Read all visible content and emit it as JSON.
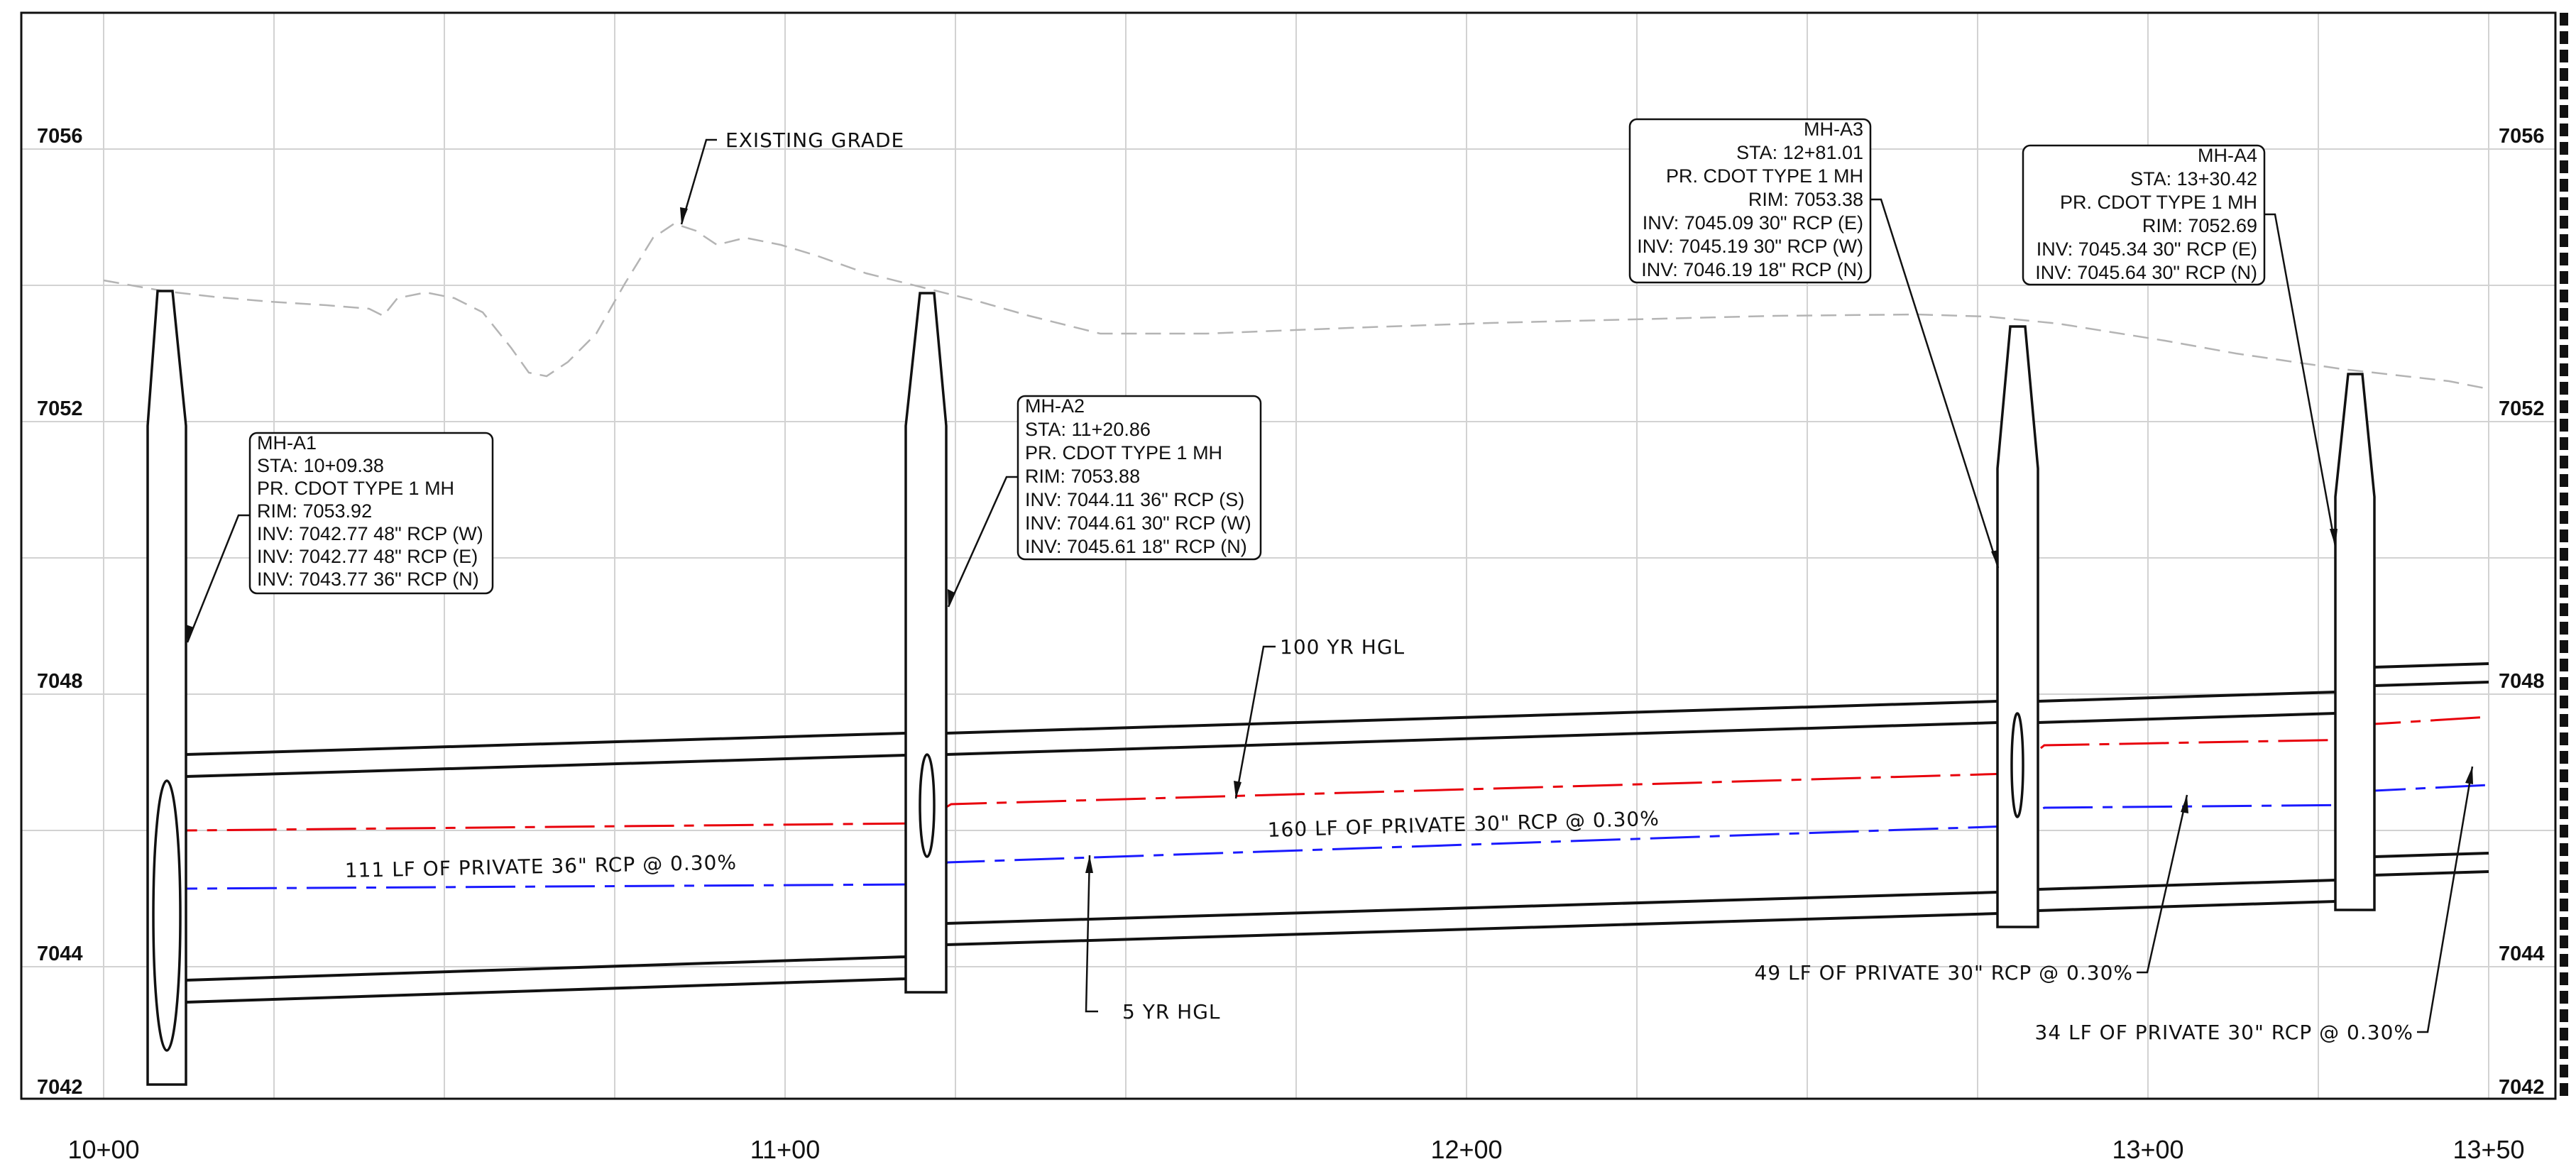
{
  "axis": {
    "elevations": [
      "7056",
      "7052",
      "7048",
      "7044",
      "7042"
    ],
    "stations": [
      "10+00",
      "11+00",
      "12+00",
      "13+00",
      "13+50"
    ]
  },
  "notes": {
    "existing_grade": "EXISTING GRADE",
    "hgl_100": "100 YR HGL",
    "hgl_5": "5 YR HGL",
    "pipe1": "111 LF OF PRIVATE 36\" RCP @ 0.30%",
    "pipe2": "160 LF OF PRIVATE 30\" RCP @ 0.30%",
    "pipe3": "49 LF OF PRIVATE 30\" RCP @ 0.30%",
    "pipe4": "34 LF OF PRIVATE 30\" RCP @ 0.30%"
  },
  "manholes": [
    {
      "name": "MH-A1",
      "sta": "STA: 10+09.38",
      "type": "PR. CDOT TYPE 1 MH",
      "rim": "RIM: 7053.92",
      "inv1": "INV: 7042.77 48\" RCP (W)",
      "inv2": "INV: 7042.77 48\" RCP (E)",
      "inv3": "INV: 7043.77 36\" RCP (N)"
    },
    {
      "name": "MH-A2",
      "sta": "STA: 11+20.86",
      "type": "PR. CDOT TYPE 1 MH",
      "rim": "RIM: 7053.88",
      "inv1": "INV: 7044.11 36\" RCP (S)",
      "inv2": "INV: 7044.61 30\" RCP (W)",
      "inv3": "INV: 7045.61 18\" RCP (N)"
    },
    {
      "name": "MH-A3",
      "sta": "STA: 12+81.01",
      "type": "PR. CDOT TYPE 1 MH",
      "rim": "RIM: 7053.38",
      "inv1": "INV: 7045.09 30\" RCP (E)",
      "inv2": "INV: 7045.19 30\" RCP (W)",
      "inv3": "INV: 7046.19 18\" RCP (N)"
    },
    {
      "name": "MH-A4",
      "sta": "STA: 13+30.42",
      "type": "PR. CDOT TYPE 1 MH",
      "rim": "RIM: 7052.69",
      "inv1": "INV: 7045.34 30\" RCP (E)",
      "inv2": "INV: 7045.64 30\" RCP (N)"
    }
  ],
  "colors": {
    "hgl_100": "#e8000b",
    "hgl_5": "#1a1aff",
    "existing_grade": "#b4b4b4",
    "grid": "#d2d2d2"
  }
}
